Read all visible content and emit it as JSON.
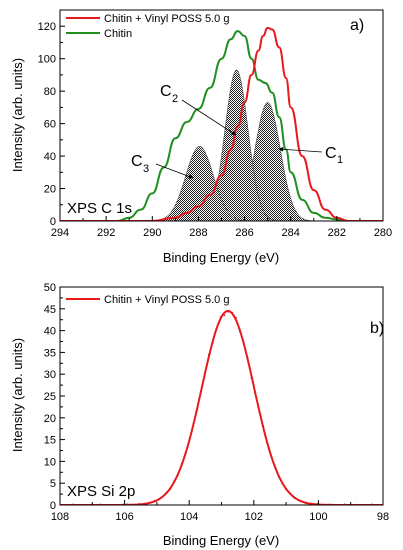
{
  "chart_data": [
    {
      "type": "line",
      "panel": "a)",
      "inset_label": "XPS C 1s",
      "xlabel": "Binding Energy (eV)",
      "ylabel": "Intensity (arb. units)",
      "xlim": [
        294,
        280
      ],
      "ylim": [
        0,
        130
      ],
      "x_reversed": true,
      "x_ticks": [
        294,
        292,
        290,
        288,
        286,
        284,
        282,
        280
      ],
      "y_ticks": [
        0,
        20,
        40,
        60,
        80,
        100,
        120
      ],
      "legend_position": "top-left",
      "series": [
        {
          "name": "Chitin + Vinyl POSS 5.0 g",
          "color": "#e8191b",
          "x": [
            290,
            289,
            288.5,
            288,
            287.5,
            287,
            286.6,
            286.3,
            286,
            285.7,
            285.4,
            285.2,
            285,
            284.8,
            284.5,
            284.2,
            284,
            283.5,
            283,
            282.5,
            282,
            281.5
          ],
          "y": [
            0,
            2,
            5,
            9,
            16,
            28,
            44,
            58,
            73,
            90,
            105,
            114,
            119,
            118,
            107,
            88,
            70,
            40,
            19,
            7,
            2,
            0
          ]
        },
        {
          "name": "Chitin",
          "color": "#1f8f1f",
          "x": [
            291.5,
            291,
            290.5,
            290,
            289.5,
            289,
            288.5,
            288,
            287.5,
            287,
            286.6,
            286.3,
            286,
            285.7,
            285.4,
            285.1,
            284.8,
            284.5,
            284.2,
            284,
            283.5,
            283,
            282.5,
            282,
            281.5
          ],
          "y": [
            0,
            2,
            7,
            17,
            33,
            51,
            61,
            69,
            82,
            100,
            112,
            117,
            114,
            100,
            87,
            85,
            79,
            64,
            44,
            30,
            13,
            5,
            2,
            1,
            0
          ]
        }
      ],
      "fitted_components": [
        {
          "name": "C1",
          "center": 285.0,
          "height": 73,
          "sigma": 0.55
        },
        {
          "name": "C2",
          "center": 286.35,
          "height": 93,
          "sigma": 0.5
        },
        {
          "name": "C3",
          "center": 287.95,
          "height": 46,
          "sigma": 0.6
        }
      ],
      "annotations": [
        {
          "label": "C",
          "sub": "1",
          "points_to": [
            284.6,
            60
          ]
        },
        {
          "label": "C",
          "sub": "2",
          "points_to": [
            286.1,
            68
          ]
        },
        {
          "label": "C",
          "sub": "3",
          "points_to": [
            287.9,
            37
          ]
        }
      ]
    },
    {
      "type": "line",
      "panel": "b)",
      "inset_label": "XPS Si 2p",
      "xlabel": "Binding Energy (eV)",
      "ylabel": "Intensity (arb. units)",
      "xlim": [
        108,
        98
      ],
      "ylim": [
        0,
        50
      ],
      "x_reversed": true,
      "x_ticks": [
        108,
        106,
        104,
        102,
        100,
        98
      ],
      "y_ticks": [
        0,
        5,
        10,
        15,
        20,
        25,
        30,
        35,
        40,
        45,
        50
      ],
      "legend_position": "top-left",
      "series": [
        {
          "name": "Chitin + Vinyl POSS 5.0 g",
          "color": "#e8191b",
          "peak_center": 102.8,
          "peak_height": 44.5,
          "fwhm": 1.9
        }
      ]
    }
  ]
}
